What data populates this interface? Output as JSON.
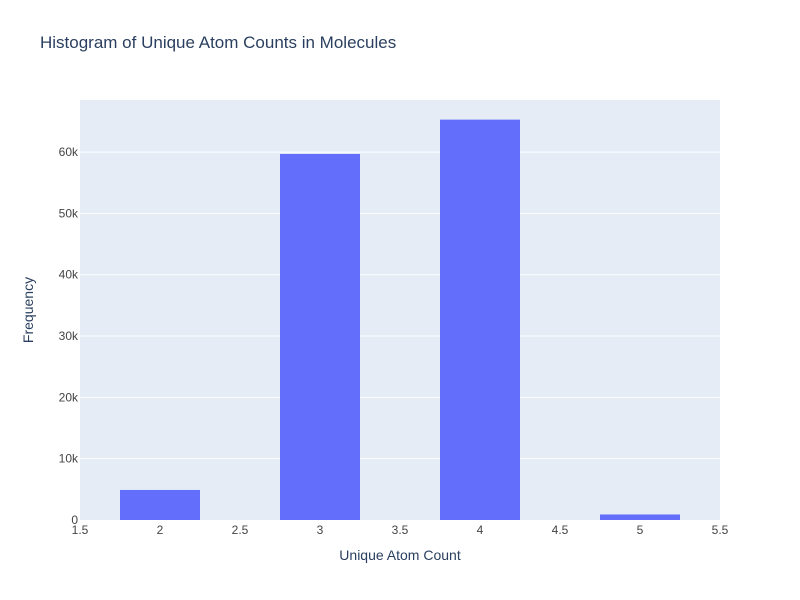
{
  "chart_data": {
    "type": "bar",
    "title": "Histogram of Unique Atom Counts in Molecules",
    "xlabel": "Unique Atom Count",
    "ylabel": "Frequency",
    "xlim": [
      1.5,
      5.5
    ],
    "ylim": [
      0,
      68500
    ],
    "bar_width": 0.5,
    "categories": [
      2,
      3,
      4,
      5
    ],
    "values": [
      4900,
      59700,
      65300,
      900
    ],
    "x_ticks": [
      {
        "value": 1.5,
        "label": "1.5"
      },
      {
        "value": 2,
        "label": "2"
      },
      {
        "value": 2.5,
        "label": "2.5"
      },
      {
        "value": 3,
        "label": "3"
      },
      {
        "value": 3.5,
        "label": "3.5"
      },
      {
        "value": 4,
        "label": "4"
      },
      {
        "value": 4.5,
        "label": "4.5"
      },
      {
        "value": 5,
        "label": "5"
      },
      {
        "value": 5.5,
        "label": "5.5"
      }
    ],
    "y_ticks": [
      {
        "value": 0,
        "label": "0"
      },
      {
        "value": 10000,
        "label": "10k"
      },
      {
        "value": 20000,
        "label": "20k"
      },
      {
        "value": 30000,
        "label": "30k"
      },
      {
        "value": 40000,
        "label": "40k"
      },
      {
        "value": 50000,
        "label": "50k"
      },
      {
        "value": 60000,
        "label": "60k"
      }
    ],
    "grid": true,
    "colors": {
      "bar": "#636efa",
      "plot_bg": "#e5ecf6",
      "grid": "#ffffff",
      "text": "#2a3f5f",
      "tick_text": "#444444"
    }
  }
}
